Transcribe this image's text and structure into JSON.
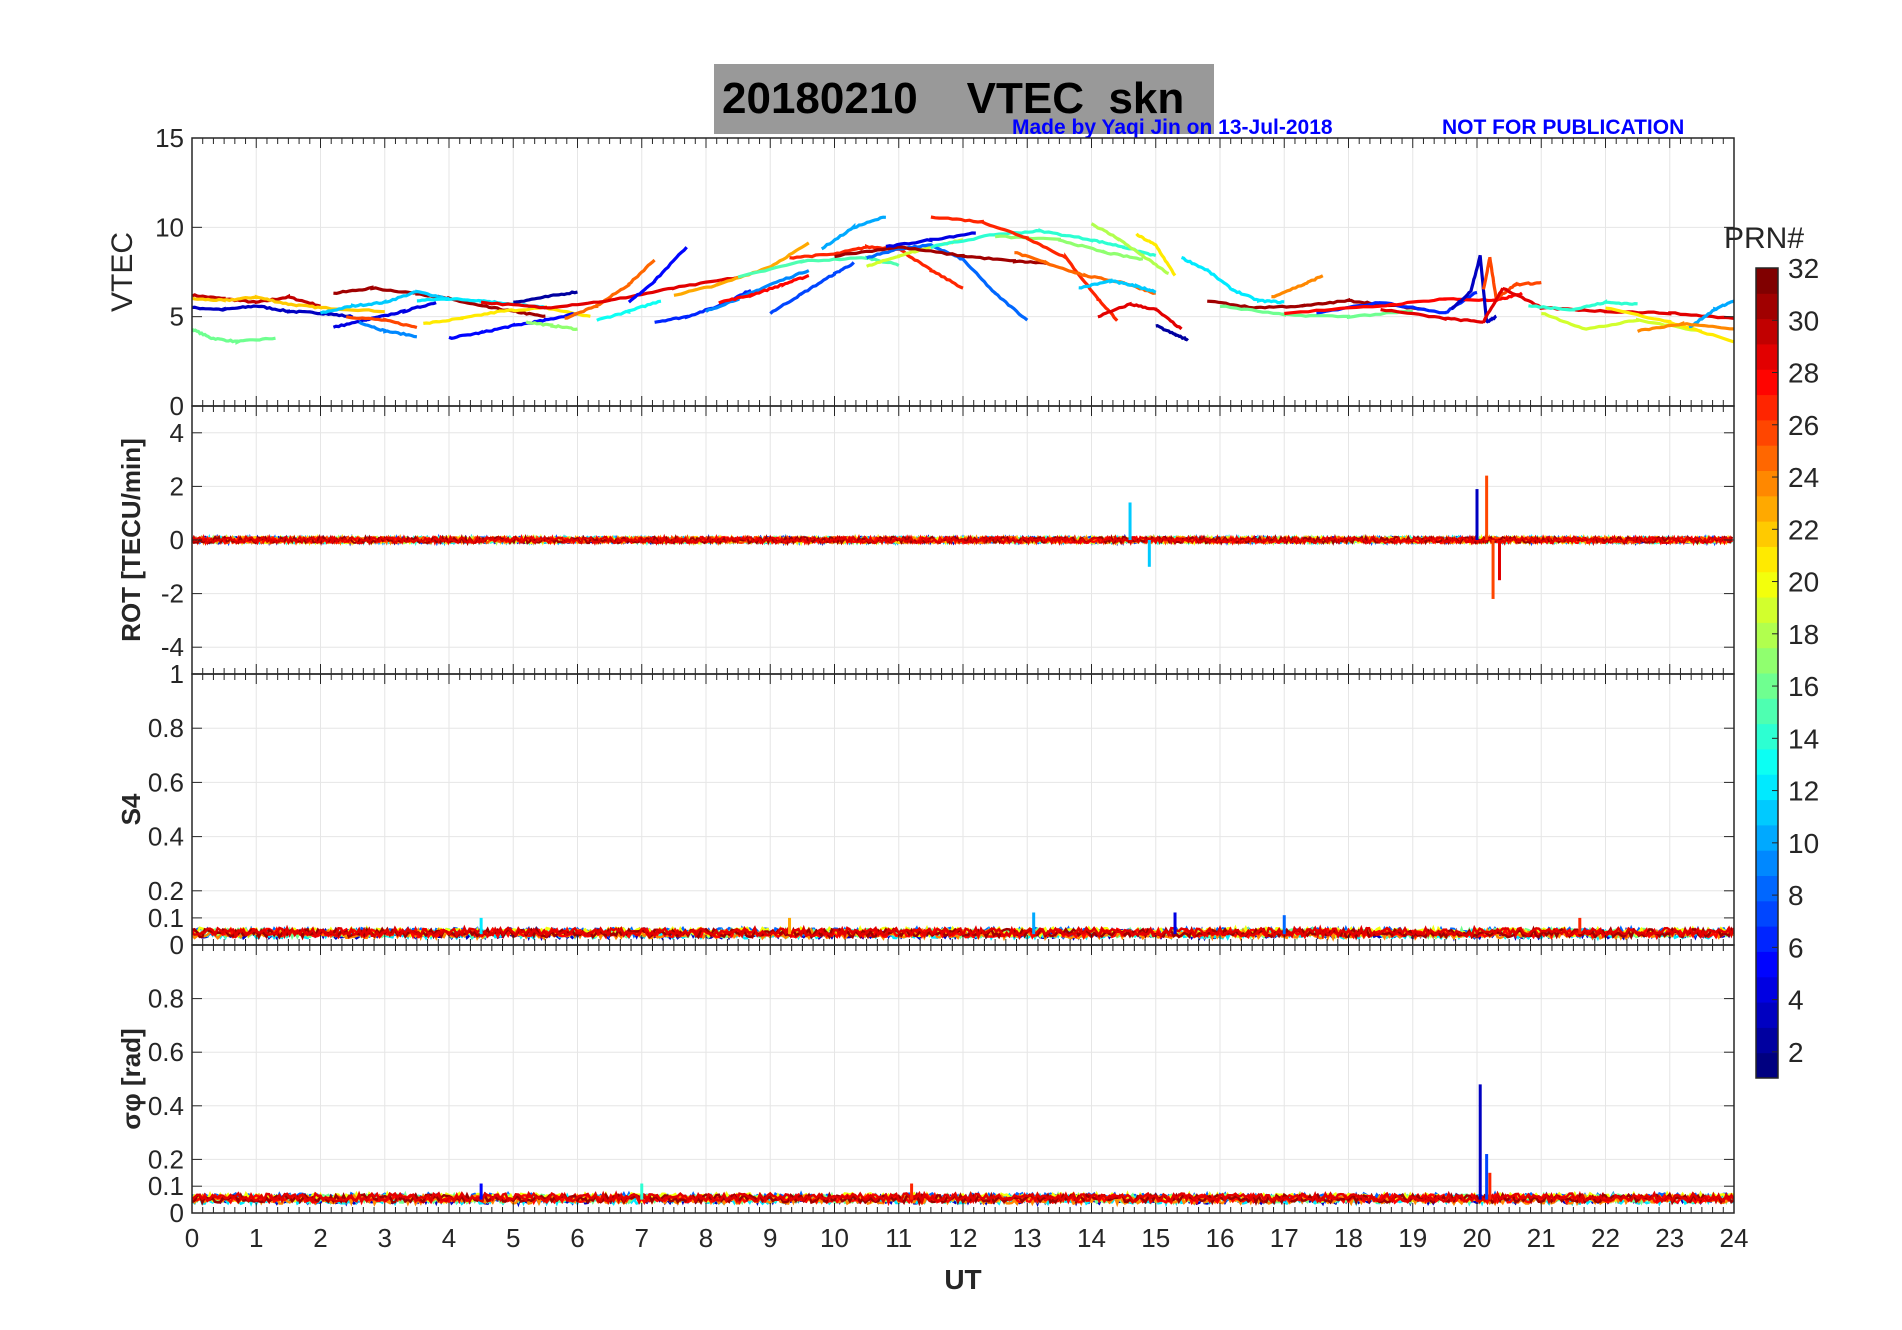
{
  "header": {
    "title": "20180210    VTEC  skn",
    "credit": "Made by Yaqi Jin on 13-Jul-2018",
    "notice": "NOT FOR PUBLICATION"
  },
  "colorbar": {
    "label": "PRN#",
    "ticks": [
      "2",
      "4",
      "6",
      "8",
      "10",
      "12",
      "14",
      "16",
      "18",
      "20",
      "22",
      "24",
      "26",
      "28",
      "30",
      "32"
    ],
    "range": [
      1,
      32
    ],
    "colormap": "jet"
  },
  "chart_data": [
    {
      "type": "line",
      "panel": "vtec",
      "ylabel": "VTEC",
      "ylim": [
        0,
        15
      ],
      "yticks": [
        "0",
        "5",
        "10",
        "15"
      ],
      "xlim": [
        0,
        24
      ],
      "grid": true,
      "series": [
        {
          "prn": 30,
          "x": [
            0,
            0.5,
            1,
            1.5,
            2
          ],
          "y": [
            6.2,
            6.0,
            5.8,
            6.1,
            5.6
          ]
        },
        {
          "prn": 3,
          "x": [
            0,
            0.5,
            1,
            1.5,
            2,
            2.5
          ],
          "y": [
            5.5,
            5.4,
            5.6,
            5.3,
            5.2,
            5.0
          ]
        },
        {
          "prn": 16,
          "x": [
            0,
            0.3,
            0.7,
            1.3
          ],
          "y": [
            4.3,
            3.8,
            3.6,
            3.8
          ]
        },
        {
          "prn": 22,
          "x": [
            0,
            0.5,
            1,
            1.5,
            2,
            3
          ],
          "y": [
            6.0,
            5.9,
            6.1,
            5.7,
            5.5,
            5.3
          ]
        },
        {
          "prn": 31,
          "x": [
            2.2,
            2.8,
            3.5,
            4,
            4.5,
            5,
            5.5
          ],
          "y": [
            6.3,
            6.6,
            6.3,
            6.0,
            5.6,
            5.3,
            5.0
          ]
        },
        {
          "prn": 11,
          "x": [
            2,
            2.5,
            3,
            3.5,
            4
          ],
          "y": [
            5.2,
            5.6,
            5.8,
            6.4,
            6.0
          ]
        },
        {
          "prn": 4,
          "x": [
            2.2,
            2.7,
            3.3,
            3.8
          ],
          "y": [
            4.4,
            4.8,
            5.3,
            5.8
          ]
        },
        {
          "prn": 26,
          "x": [
            2.4,
            3,
            3.5
          ],
          "y": [
            5.0,
            4.8,
            4.4
          ]
        },
        {
          "prn": 9,
          "x": [
            2.6,
            3,
            3.5
          ],
          "y": [
            4.7,
            4.2,
            3.9
          ]
        },
        {
          "prn": 21,
          "x": [
            3.6,
            4.2,
            4.8,
            5.5,
            6.2
          ],
          "y": [
            4.6,
            4.9,
            5.3,
            5.5,
            5.0
          ]
        },
        {
          "prn": 12,
          "x": [
            3.5,
            4,
            4.5,
            5,
            5.5
          ],
          "y": [
            5.9,
            6.0,
            5.9,
            5.7,
            5.5
          ]
        },
        {
          "prn": 5,
          "x": [
            4,
            4.5,
            5,
            5.5,
            6
          ],
          "y": [
            3.8,
            4.1,
            4.5,
            4.8,
            5.2
          ]
        },
        {
          "prn": 2,
          "x": [
            5,
            5.5,
            6
          ],
          "y": [
            5.8,
            6.1,
            6.4
          ]
        },
        {
          "prn": 17,
          "x": [
            5.2,
            5.6,
            6
          ],
          "y": [
            4.7,
            4.5,
            4.3
          ]
        },
        {
          "prn": 25,
          "x": [
            5.8,
            6.3,
            6.8,
            7.2
          ],
          "y": [
            4.9,
            5.6,
            6.8,
            8.2
          ]
        },
        {
          "prn": 29,
          "x": [
            4.5,
            5.5,
            6.5,
            7.5,
            8.5
          ],
          "y": [
            5.8,
            5.5,
            5.9,
            6.6,
            7.2
          ]
        },
        {
          "prn": 13,
          "x": [
            6.3,
            6.8,
            7.3
          ],
          "y": [
            4.8,
            5.3,
            5.9
          ]
        },
        {
          "prn": 6,
          "x": [
            7.2,
            7.7,
            8.2,
            8.7
          ],
          "y": [
            4.7,
            5.0,
            5.6,
            6.5
          ]
        },
        {
          "prn": 5,
          "x": [
            6.8,
            7.2,
            7.7
          ],
          "y": [
            5.8,
            7.0,
            8.9
          ]
        },
        {
          "prn": 23,
          "x": [
            7.5,
            8.2,
            9,
            9.6
          ],
          "y": [
            6.2,
            6.8,
            7.8,
            9.1
          ]
        },
        {
          "prn": 9,
          "x": [
            8,
            8.5,
            9,
            9.6
          ],
          "y": [
            5.3,
            6.0,
            6.8,
            7.6
          ]
        },
        {
          "prn": 28,
          "x": [
            8.2,
            8.7,
            9.2,
            9.6
          ],
          "y": [
            5.8,
            6.2,
            6.8,
            7.3
          ]
        },
        {
          "prn": 7,
          "x": [
            9,
            9.5,
            10,
            10.3
          ],
          "y": [
            5.2,
            6.3,
            7.4,
            8.0
          ]
        },
        {
          "prn": 15,
          "x": [
            8.5,
            9.5,
            10.5,
            11
          ],
          "y": [
            7.2,
            8.1,
            8.3,
            7.9
          ]
        },
        {
          "prn": 10,
          "x": [
            9.8,
            10.3,
            10.8
          ],
          "y": [
            8.8,
            10.0,
            10.6
          ]
        },
        {
          "prn": 27,
          "x": [
            9.3,
            10,
            10.5,
            11,
            11.5,
            12
          ],
          "y": [
            8.3,
            8.5,
            8.9,
            8.8,
            7.6,
            6.6
          ]
        },
        {
          "prn": 19,
          "x": [
            10.5,
            11,
            11.5,
            12
          ],
          "y": [
            7.8,
            8.4,
            8.9,
            9.3
          ]
        },
        {
          "prn": 8,
          "x": [
            10.5,
            11,
            11.5,
            12,
            12.5,
            13
          ],
          "y": [
            8.3,
            8.8,
            9.0,
            8.2,
            6.3,
            4.8
          ]
        },
        {
          "prn": 31,
          "x": [
            10,
            11,
            12,
            12.8,
            13.3
          ],
          "y": [
            8.4,
            8.9,
            8.4,
            8.1,
            8.0
          ]
        },
        {
          "prn": 4,
          "x": [
            10.8,
            11.5,
            12.2
          ],
          "y": [
            8.9,
            9.3,
            9.7
          ]
        },
        {
          "prn": 14,
          "x": [
            11.5,
            12.5,
            13.2,
            14,
            14.5,
            15
          ],
          "y": [
            8.9,
            9.6,
            9.8,
            9.3,
            8.9,
            8.4
          ]
        },
        {
          "prn": 17,
          "x": [
            12.5,
            13.5,
            14.2,
            14.8
          ],
          "y": [
            9.5,
            9.3,
            8.6,
            8.2
          ]
        },
        {
          "prn": 27,
          "x": [
            11.5,
            12.3,
            13,
            13.6,
            14.1,
            14.4
          ],
          "y": [
            10.6,
            10.3,
            9.4,
            8.3,
            6.0,
            4.8
          ]
        },
        {
          "prn": 25,
          "x": [
            12.8,
            13.3,
            13.9,
            14.5,
            15
          ],
          "y": [
            8.6,
            8.0,
            7.3,
            6.9,
            6.3
          ]
        },
        {
          "prn": 11,
          "x": [
            13.8,
            14.3,
            14.7,
            15
          ],
          "y": [
            6.6,
            7.0,
            6.7,
            6.4
          ]
        },
        {
          "prn": 18,
          "x": [
            14,
            14.4,
            14.8,
            15.2
          ],
          "y": [
            10.2,
            9.4,
            8.4,
            7.4
          ]
        },
        {
          "prn": 21,
          "x": [
            14.7,
            15,
            15.3
          ],
          "y": [
            9.6,
            9.0,
            7.3
          ]
        },
        {
          "prn": 29,
          "x": [
            14.1,
            14.6,
            15,
            15.4
          ],
          "y": [
            5.0,
            5.7,
            5.4,
            4.3
          ]
        },
        {
          "prn": 2,
          "x": [
            15,
            15.3,
            15.5
          ],
          "y": [
            4.5,
            4.0,
            3.7
          ]
        },
        {
          "prn": 12,
          "x": [
            15.4,
            15.8,
            16.2,
            16.6,
            17
          ],
          "y": [
            8.3,
            7.6,
            6.5,
            5.9,
            5.8
          ]
        },
        {
          "prn": 31,
          "x": [
            15.8,
            16.5,
            17.3,
            18,
            18.5,
            19.2
          ],
          "y": [
            5.9,
            5.5,
            5.6,
            5.9,
            5.7,
            5.4
          ]
        },
        {
          "prn": 24,
          "x": [
            16.8,
            17.3,
            17.6
          ],
          "y": [
            6.1,
            6.8,
            7.3
          ]
        },
        {
          "prn": 16,
          "x": [
            16,
            17,
            18,
            19
          ],
          "y": [
            5.6,
            5.1,
            5.0,
            5.3
          ]
        },
        {
          "prn": 6,
          "x": [
            17.5,
            18.5,
            19.5,
            20
          ],
          "y": [
            5.2,
            5.8,
            5.2,
            6.4
          ]
        },
        {
          "prn": 28,
          "x": [
            17,
            18.5,
            19.5,
            20.3,
            20.7
          ],
          "y": [
            5.2,
            5.6,
            6.0,
            5.9,
            6.3
          ]
        },
        {
          "prn": 3,
          "x": [
            19.6,
            19.9,
            20.05,
            20.15,
            20.3
          ],
          "y": [
            5.4,
            6.4,
            8.4,
            4.7,
            5.0
          ]
        },
        {
          "prn": 26,
          "x": [
            20.1,
            20.2,
            20.3,
            20.6,
            21
          ],
          "y": [
            6.5,
            8.3,
            6.0,
            6.8,
            6.9
          ]
        },
        {
          "prn": 29,
          "x": [
            18.5,
            19.5,
            20.1,
            20.4,
            21,
            22,
            23,
            24
          ],
          "y": [
            5.4,
            4.9,
            4.7,
            6.6,
            5.5,
            5.3,
            5.2,
            4.9
          ]
        },
        {
          "prn": 14,
          "x": [
            20.8,
            21.5,
            22,
            22.5
          ],
          "y": [
            5.6,
            5.4,
            5.8,
            5.7
          ]
        },
        {
          "prn": 19,
          "x": [
            21,
            21.7,
            22.5,
            23.5
          ],
          "y": [
            5.2,
            4.3,
            4.8,
            4.2
          ]
        },
        {
          "prn": 21,
          "x": [
            22,
            23,
            24
          ],
          "y": [
            5.5,
            4.7,
            3.6
          ]
        },
        {
          "prn": 10,
          "x": [
            23.3,
            23.7,
            24
          ],
          "y": [
            4.4,
            5.4,
            5.9
          ]
        },
        {
          "prn": 24,
          "x": [
            22.5,
            23.2,
            24
          ],
          "y": [
            4.2,
            4.6,
            4.3
          ]
        }
      ]
    },
    {
      "type": "line",
      "panel": "rot",
      "ylabel": "ROT [TECU/min]",
      "ylim": [
        -5,
        5
      ],
      "yticks": [
        "-4",
        "-2",
        "0",
        "2",
        "4"
      ],
      "xlim": [
        0,
        24
      ],
      "grid": true,
      "baseline_noise": 0.12,
      "bursts": [
        {
          "x": 14.6,
          "amp": 1.4,
          "prn": 11
        },
        {
          "x": 14.9,
          "amp": -1.0,
          "prn": 11
        },
        {
          "x": 20.0,
          "amp": 1.9,
          "prn": 3
        },
        {
          "x": 20.15,
          "amp": 2.4,
          "prn": 26
        },
        {
          "x": 20.25,
          "amp": -2.2,
          "prn": 26
        },
        {
          "x": 20.35,
          "amp": -1.5,
          "prn": 29
        }
      ]
    },
    {
      "type": "line",
      "panel": "s4",
      "ylabel": "S4",
      "ylim": [
        0,
        1
      ],
      "yticks": [
        "0",
        "0.1",
        "0.2",
        "0.4",
        "0.6",
        "0.8",
        "1"
      ],
      "xlim": [
        0,
        24
      ],
      "grid": true,
      "baseline": 0.04,
      "spikes": [
        {
          "x": 4.5,
          "y": 0.1,
          "prn": 12
        },
        {
          "x": 9.3,
          "y": 0.1,
          "prn": 23
        },
        {
          "x": 13.1,
          "y": 0.12,
          "prn": 10
        },
        {
          "x": 15.3,
          "y": 0.12,
          "prn": 4
        },
        {
          "x": 17.0,
          "y": 0.11,
          "prn": 8
        },
        {
          "x": 21.6,
          "y": 0.1,
          "prn": 27
        }
      ]
    },
    {
      "type": "line",
      "panel": "sigma_phi",
      "ylabel": "σφ [rad]",
      "ylim": [
        0,
        1
      ],
      "yticks": [
        "0",
        "0.1",
        "0.2",
        "0.4",
        "0.6",
        "0.8"
      ],
      "xlim": [
        0,
        24
      ],
      "xticks": [
        "0",
        "1",
        "2",
        "3",
        "4",
        "5",
        "6",
        "7",
        "8",
        "9",
        "10",
        "11",
        "12",
        "13",
        "14",
        "15",
        "16",
        "17",
        "18",
        "19",
        "20",
        "21",
        "22",
        "23",
        "24"
      ],
      "xlabel": "UT",
      "grid": true,
      "baseline": 0.05,
      "spikes": [
        {
          "x": 4.5,
          "y": 0.11,
          "prn": 5
        },
        {
          "x": 7.0,
          "y": 0.11,
          "prn": 14
        },
        {
          "x": 11.2,
          "y": 0.11,
          "prn": 27
        },
        {
          "x": 20.05,
          "y": 0.48,
          "prn": 3
        },
        {
          "x": 20.15,
          "y": 0.22,
          "prn": 7
        },
        {
          "x": 20.2,
          "y": 0.15,
          "prn": 27
        }
      ]
    }
  ]
}
